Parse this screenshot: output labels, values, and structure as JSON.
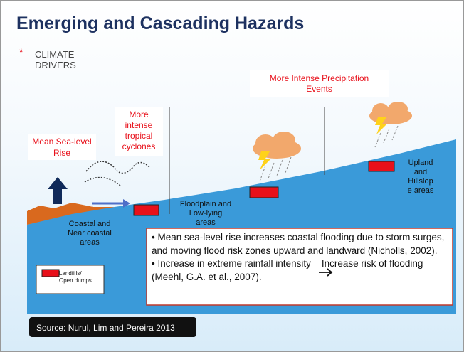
{
  "title": "Emerging and Cascading Hazards",
  "subtitle": {
    "marker": "*",
    "lines": [
      "CLIMATE",
      "DRIVERS"
    ]
  },
  "drivers": [
    {
      "lines": [
        "Mean Sea-level",
        "Rise"
      ]
    },
    {
      "lines": [
        "More",
        "intense",
        "tropical",
        "cyclones"
      ]
    },
    {
      "lines": [
        "More Intense Precipitation",
        "Events"
      ]
    }
  ],
  "zones": [
    {
      "lines": [
        "Coastal and",
        "Near coastal",
        "areas"
      ]
    },
    {
      "lines": [
        "Floodplain and",
        "Low-lying",
        "areas"
      ]
    },
    {
      "lines": [
        "Upland",
        "and",
        "Hillslop",
        "e areas"
      ]
    }
  ],
  "callout": {
    "bullets": [
      "• Mean sea-level rise increases coastal flooding due to storm surges, and moving flood risk zones upward and landward (Nicholls, 2002).",
      "• Increase in extreme rainfall intensity    Increase risk of flooding  (Meehl, G.A. et al., 2007)."
    ]
  },
  "legend": {
    "lines": [
      "Landfills/",
      "Open dumps"
    ]
  },
  "source": "Source: Nurul, Lim and Pereira 2013"
}
